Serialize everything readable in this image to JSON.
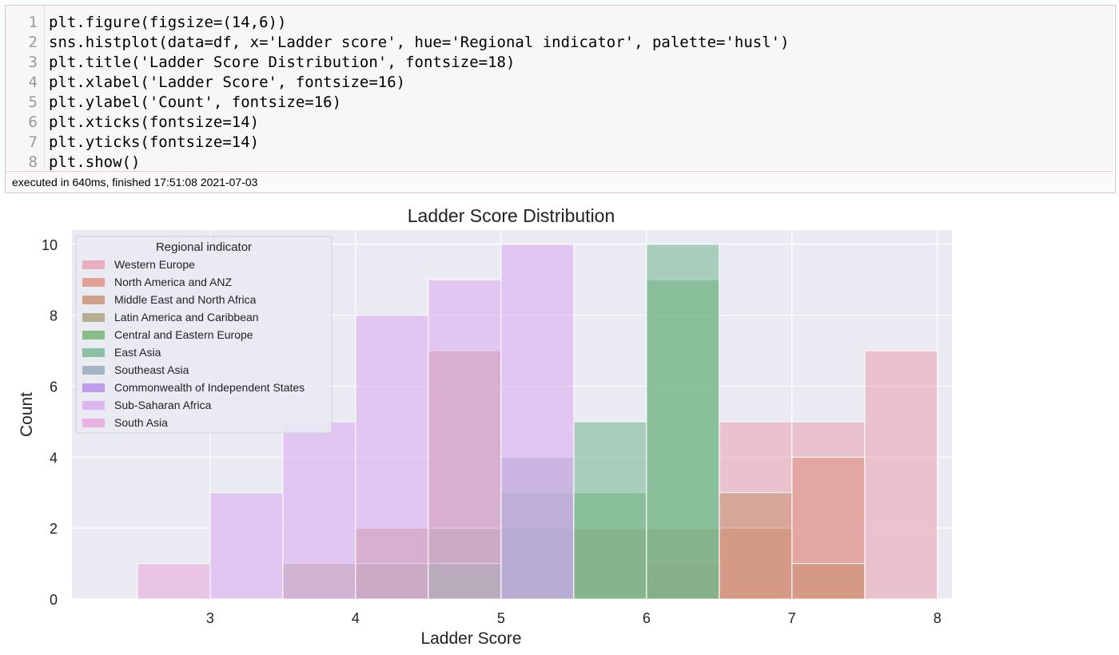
{
  "cell": {
    "lines": [
      "plt.figure(figsize=(14,6))",
      "sns.histplot(data=df, x='Ladder score', hue='Regional indicator', palette='husl')",
      "plt.title('Ladder Score Distribution', fontsize=18)",
      "plt.xlabel('Ladder Score', fontsize=16)",
      "plt.ylabel('Count', fontsize=16)",
      "plt.xticks(fontsize=14)",
      "plt.yticks(fontsize=14)",
      "plt.show()"
    ],
    "line_numbers": [
      "1",
      "2",
      "3",
      "4",
      "5",
      "6",
      "7",
      "8"
    ],
    "execution_status": "executed in 640ms, finished 17:51:08 2021-07-03"
  },
  "chart_data": {
    "type": "bar",
    "title": "Ladder Score Distribution",
    "xlabel": "Ladder Score",
    "ylabel": "Count",
    "xlim": [
      2.05,
      8.1
    ],
    "ylim": [
      0,
      10.4
    ],
    "xticks": [
      3,
      4,
      5,
      6,
      7,
      8
    ],
    "yticks": [
      0,
      2,
      4,
      6,
      8,
      10
    ],
    "grid": true,
    "legend_title": "Regional indicator",
    "legend_position": "top-left",
    "bin_edges": [
      2.5,
      3.0,
      3.5,
      4.0,
      4.5,
      5.0,
      5.5,
      6.0,
      6.5,
      7.0,
      7.5,
      8.0
    ],
    "series": [
      {
        "name": "Western Europe",
        "color": "#e7a0b0",
        "counts": [
          0,
          0,
          0,
          0,
          0,
          0,
          0,
          0,
          5,
          5,
          7
        ]
      },
      {
        "name": "North America and ANZ",
        "color": "#e08f80",
        "counts": [
          0,
          0,
          0,
          0,
          0,
          0,
          0,
          1,
          2,
          4,
          0
        ]
      },
      {
        "name": "Middle East and North Africa",
        "color": "#c99070",
        "counts": [
          0,
          0,
          0,
          2,
          7,
          0,
          2,
          2,
          3,
          1,
          0
        ]
      },
      {
        "name": "Latin America and Caribbean",
        "color": "#a7a17a",
        "counts": [
          0,
          0,
          1,
          1,
          2,
          0,
          0,
          0,
          0,
          0,
          0
        ]
      },
      {
        "name": "Central and Eastern Europe",
        "color": "#6fb36a",
        "counts": [
          0,
          0,
          0,
          0,
          1,
          2,
          3,
          9,
          0,
          0,
          0
        ]
      },
      {
        "name": "East Asia",
        "color": "#73b592",
        "counts": [
          0,
          0,
          0,
          0,
          0,
          3,
          5,
          10,
          0,
          0,
          0
        ]
      },
      {
        "name": "Southeast Asia",
        "color": "#93a7ba",
        "counts": [
          0,
          0,
          0,
          0,
          0,
          4,
          0,
          0,
          0,
          0,
          0
        ]
      },
      {
        "name": "Commonwealth of Independent States",
        "color": "#b48be8",
        "counts": [
          0,
          0,
          0,
          0,
          0,
          0,
          0,
          0,
          0,
          0,
          0
        ]
      },
      {
        "name": "Sub-Saharan Africa",
        "color": "#d9a8f0",
        "counts": [
          0,
          3,
          5,
          8,
          9,
          10,
          0,
          0,
          0,
          0,
          0
        ]
      },
      {
        "name": "South Asia",
        "color": "#e8a4d8",
        "counts": [
          1,
          0,
          0,
          0,
          0,
          0,
          0,
          0,
          0,
          0,
          0
        ]
      }
    ]
  }
}
